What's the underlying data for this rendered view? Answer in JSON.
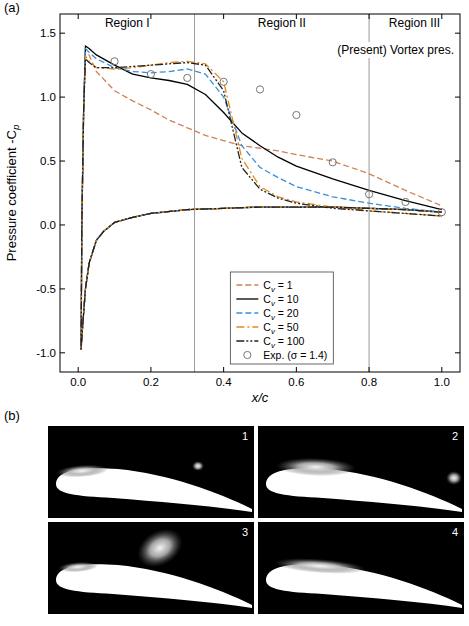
{
  "chart_data": {
    "type": "line",
    "panel_label": "(a)",
    "annotation": "(Present) Vortex pres.",
    "x_label": "x/c",
    "y_label": "Pressure coefficient -Cp",
    "xlim": [
      -0.05,
      1.05
    ],
    "ylim": [
      -1.15,
      1.65
    ],
    "xticks": [
      {
        "value": 0,
        "label": "0.0"
      },
      {
        "value": 0.2,
        "label": "0.2"
      },
      {
        "value": 0.4,
        "label": "0.4"
      },
      {
        "value": 0.6,
        "label": "0.6"
      },
      {
        "value": 0.8,
        "label": "0.8"
      },
      {
        "value": 1,
        "label": "1.0"
      }
    ],
    "yticks": [
      {
        "value": -1,
        "label": "-1.0"
      },
      {
        "value": -0.5,
        "label": "-0.5"
      },
      {
        "value": 0,
        "label": "0.0"
      },
      {
        "value": 0.5,
        "label": "0.5"
      },
      {
        "value": 1,
        "label": "1.0"
      },
      {
        "value": 1.5,
        "label": "1.5"
      }
    ],
    "regions": [
      "Region I",
      "Region II",
      "Region III"
    ],
    "region_bounds": [
      0.32,
      0.8
    ],
    "legend": "lower center",
    "series": [
      {
        "name": "Cv = 1",
        "color": "#d0805a",
        "line_style": "dashed",
        "x": [
          1.0,
          0.9,
          0.8,
          0.7,
          0.6,
          0.5,
          0.4,
          0.3,
          0.2,
          0.15,
          0.1,
          0.07,
          0.05,
          0.03,
          0.02,
          0.012,
          0.008,
          0.01,
          0.015,
          0.02,
          0.03,
          0.05,
          0.1,
          0.15,
          0.2,
          0.25,
          0.3,
          0.35,
          0.4,
          0.45,
          0.5,
          0.55,
          0.6,
          0.7,
          0.8,
          0.9,
          1.0
        ],
        "values": [
          0.1,
          0.12,
          0.13,
          0.14,
          0.14,
          0.14,
          0.13,
          0.12,
          0.09,
          0.06,
          0.02,
          -0.05,
          -0.12,
          -0.3,
          -0.5,
          -0.8,
          -0.97,
          0.0,
          0.9,
          1.35,
          1.33,
          1.2,
          1.05,
          0.97,
          0.9,
          0.82,
          0.76,
          0.7,
          0.66,
          0.62,
          0.6,
          0.58,
          0.55,
          0.5,
          0.4,
          0.27,
          0.15
        ]
      },
      {
        "name": "Cv = 10",
        "color": "#000000",
        "line_style": "solid",
        "x": [
          1.0,
          0.9,
          0.8,
          0.7,
          0.6,
          0.5,
          0.4,
          0.3,
          0.2,
          0.15,
          0.1,
          0.07,
          0.05,
          0.03,
          0.02,
          0.012,
          0.008,
          0.01,
          0.015,
          0.02,
          0.03,
          0.05,
          0.1,
          0.15,
          0.2,
          0.25,
          0.3,
          0.35,
          0.4,
          0.45,
          0.5,
          0.55,
          0.6,
          0.7,
          0.8,
          0.9,
          1.0
        ],
        "values": [
          0.1,
          0.12,
          0.13,
          0.14,
          0.14,
          0.14,
          0.13,
          0.12,
          0.09,
          0.06,
          0.02,
          -0.05,
          -0.12,
          -0.3,
          -0.5,
          -0.8,
          -0.97,
          0.0,
          0.9,
          1.4,
          1.38,
          1.33,
          1.25,
          1.18,
          1.15,
          1.13,
          1.1,
          1.02,
          0.88,
          0.72,
          0.62,
          0.53,
          0.46,
          0.36,
          0.27,
          0.19,
          0.12
        ]
      },
      {
        "name": "Cv = 20",
        "color": "#3a8fd8",
        "line_style": "dashed",
        "x": [
          1.0,
          0.9,
          0.8,
          0.7,
          0.6,
          0.5,
          0.4,
          0.3,
          0.2,
          0.15,
          0.1,
          0.07,
          0.05,
          0.03,
          0.02,
          0.012,
          0.008,
          0.01,
          0.015,
          0.02,
          0.03,
          0.05,
          0.1,
          0.15,
          0.2,
          0.25,
          0.3,
          0.35,
          0.4,
          0.45,
          0.5,
          0.55,
          0.6,
          0.7,
          0.8,
          0.9,
          1.0
        ],
        "values": [
          0.1,
          0.12,
          0.13,
          0.14,
          0.14,
          0.14,
          0.13,
          0.12,
          0.09,
          0.06,
          0.02,
          -0.05,
          -0.12,
          -0.3,
          -0.5,
          -0.8,
          -0.97,
          0.0,
          0.9,
          1.38,
          1.35,
          1.3,
          1.23,
          1.2,
          1.19,
          1.2,
          1.22,
          1.18,
          1.0,
          0.62,
          0.45,
          0.37,
          0.3,
          0.22,
          0.17,
          0.13,
          0.1
        ]
      },
      {
        "name": "Cv = 50",
        "color": "#e08a1e",
        "line_style": "dash-dot",
        "x": [
          1.0,
          0.9,
          0.8,
          0.7,
          0.6,
          0.5,
          0.4,
          0.3,
          0.2,
          0.15,
          0.1,
          0.07,
          0.05,
          0.03,
          0.02,
          0.012,
          0.008,
          0.01,
          0.015,
          0.02,
          0.03,
          0.05,
          0.1,
          0.15,
          0.2,
          0.25,
          0.3,
          0.35,
          0.4,
          0.45,
          0.5,
          0.55,
          0.6,
          0.7,
          0.8,
          0.9,
          1.0
        ],
        "values": [
          0.1,
          0.12,
          0.13,
          0.14,
          0.14,
          0.14,
          0.13,
          0.12,
          0.09,
          0.06,
          0.02,
          -0.05,
          -0.12,
          -0.3,
          -0.5,
          -0.8,
          -0.97,
          0.0,
          0.9,
          1.32,
          1.28,
          1.23,
          1.22,
          1.23,
          1.25,
          1.27,
          1.28,
          1.26,
          1.12,
          0.52,
          0.3,
          0.22,
          0.18,
          0.14,
          0.11,
          0.09,
          0.07
        ]
      },
      {
        "name": "Cv = 100",
        "color": "#222222",
        "line_style": "dash-dot-dot",
        "x": [
          1.0,
          0.9,
          0.8,
          0.7,
          0.6,
          0.5,
          0.4,
          0.3,
          0.2,
          0.15,
          0.1,
          0.07,
          0.05,
          0.03,
          0.02,
          0.012,
          0.008,
          0.01,
          0.015,
          0.02,
          0.03,
          0.05,
          0.1,
          0.15,
          0.2,
          0.25,
          0.3,
          0.35,
          0.4,
          0.45,
          0.5,
          0.55,
          0.6,
          0.7,
          0.8,
          0.9,
          1.0
        ],
        "values": [
          0.1,
          0.12,
          0.13,
          0.14,
          0.14,
          0.14,
          0.13,
          0.12,
          0.09,
          0.06,
          0.02,
          -0.05,
          -0.12,
          -0.3,
          -0.5,
          -0.8,
          -0.97,
          0.0,
          0.9,
          1.3,
          1.27,
          1.23,
          1.23,
          1.24,
          1.25,
          1.26,
          1.27,
          1.25,
          1.05,
          0.45,
          0.28,
          0.21,
          0.17,
          0.13,
          0.11,
          0.09,
          0.07
        ]
      },
      {
        "name": "Exp. (σ = 1.4)",
        "color": "#777777",
        "type": "scatter",
        "marker": "circle",
        "x": [
          0.1,
          0.2,
          0.3,
          0.4,
          0.5,
          0.6,
          0.7,
          0.8,
          0.9,
          1.0
        ],
        "values": [
          1.28,
          1.18,
          1.15,
          1.12,
          1.06,
          0.86,
          0.49,
          0.24,
          0.18,
          0.1
        ]
      }
    ]
  },
  "image_panel": {
    "label": "(b)",
    "frames": [
      "1",
      "2",
      "3",
      "4"
    ]
  }
}
